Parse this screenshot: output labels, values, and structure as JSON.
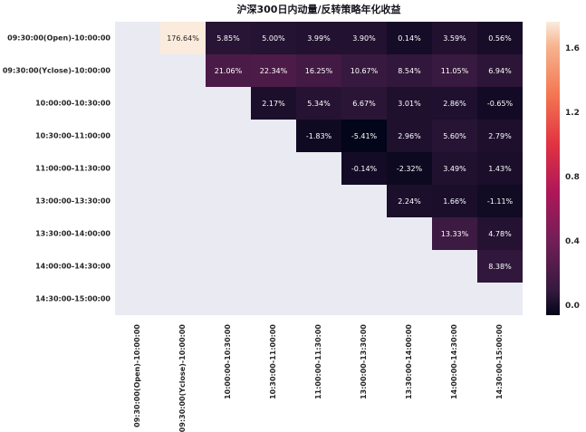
{
  "chart_data": {
    "type": "heatmap",
    "title": "沪深300日内动量/反转策略年化收益",
    "value_format": "percent",
    "row_labels": [
      "09:30:00(Open)-10:00:00",
      "09:30:00(Yclose)-10:00:00",
      "10:00:00-10:30:00",
      "10:30:00-11:00:00",
      "11:00:00-11:30:00",
      "13:00:00-13:30:00",
      "13:30:00-14:00:00",
      "14:00:00-14:30:00",
      "14:30:00-15:00:00"
    ],
    "col_labels": [
      "09:30:00(Open)-10:00:00",
      "09:30:00(Yclose)-10:00:00",
      "10:00:00-10:30:00",
      "10:30:00-11:00:00",
      "11:00:00-11:30:00",
      "13:00:00-13:30:00",
      "13:30:00-14:00:00",
      "14:00:00-14:30:00",
      "14:30:00-15:00:00"
    ],
    "matrix_pct": [
      [
        null,
        176.64,
        5.85,
        5.0,
        3.99,
        3.9,
        0.14,
        3.59,
        0.56
      ],
      [
        null,
        null,
        21.06,
        22.34,
        16.25,
        10.67,
        8.54,
        11.05,
        6.94
      ],
      [
        null,
        null,
        null,
        2.17,
        5.34,
        6.67,
        3.01,
        2.86,
        -0.65
      ],
      [
        null,
        null,
        null,
        null,
        -1.83,
        -5.41,
        2.96,
        5.6,
        2.79
      ],
      [
        null,
        null,
        null,
        null,
        null,
        -0.14,
        -2.32,
        3.49,
        1.43
      ],
      [
        null,
        null,
        null,
        null,
        null,
        null,
        2.24,
        1.66,
        -1.11
      ],
      [
        null,
        null,
        null,
        null,
        null,
        null,
        null,
        13.33,
        4.78
      ],
      [
        null,
        null,
        null,
        null,
        null,
        null,
        null,
        null,
        8.38
      ],
      [
        null,
        null,
        null,
        null,
        null,
        null,
        null,
        null,
        null
      ]
    ],
    "vmin": -0.0541,
    "vmax": 1.7664,
    "colorbar": {
      "position": "right",
      "ticks": [
        "0.0",
        "0.4",
        "0.8",
        "1.2",
        "1.6"
      ],
      "tick_values": [
        0.0,
        0.4,
        0.8,
        1.2,
        1.6
      ]
    },
    "colormap": "rocket",
    "colormap_stops": [
      [
        0.0,
        "#03051A"
      ],
      [
        0.0833,
        "#35193E"
      ],
      [
        0.25,
        "#701F57"
      ],
      [
        0.4167,
        "#AD1759"
      ],
      [
        0.5833,
        "#E13342"
      ],
      [
        0.75,
        "#F37651"
      ],
      [
        0.9167,
        "#F6B48F"
      ],
      [
        1.0,
        "#FAEBDD"
      ]
    ],
    "colors": {
      "empty_cell": "#EAEAF2",
      "annotation_light": "#FFFFFF",
      "annotation_dark": "#262626",
      "tick_text": "#262626",
      "title_text": "#15151E",
      "figure_bg": "#FFFFFF"
    }
  }
}
